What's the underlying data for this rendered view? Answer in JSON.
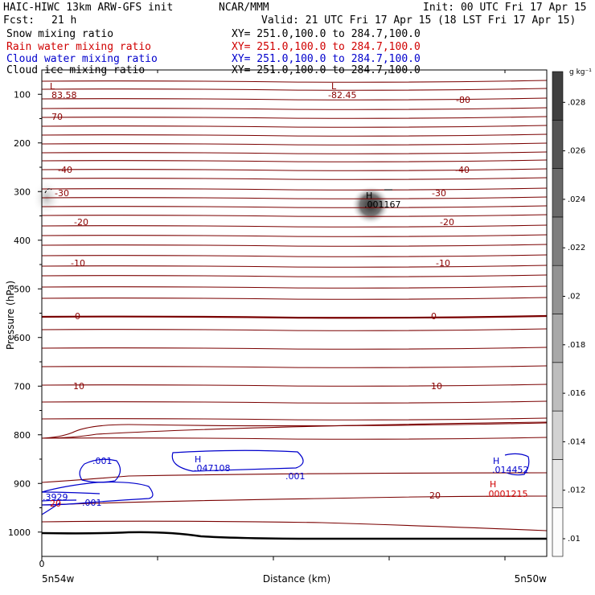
{
  "header": {
    "title": "HAIC-HIWC 13km ARW-GFS init",
    "org": "NCAR/MMM",
    "init": "Init: 00 UTC Fri 17 Apr 15",
    "fcst": "Fcst:",
    "fcst_hours": "21 h",
    "valid": "Valid: 21 UTC Fri 17 Apr 15 (18 LST Fri 17 Apr 15)"
  },
  "fields": [
    {
      "label": "Snow mixing ratio",
      "xy": "XY= 251.0,100.0 to 284.7,100.0",
      "color": "#000000"
    },
    {
      "label": "Rain water mixing ratio",
      "xy": "XY= 251.0,100.0 to 284.7,100.0",
      "color": "#d00000"
    },
    {
      "label": "Cloud water mixing ratio",
      "xy": "XY= 251.0,100.0 to 284.7,100.0",
      "color": "#0000cc"
    },
    {
      "label": "Cloud ice mixing ratio",
      "xy": "XY= 251.0,100.0 to 284.7,100.0",
      "color": "#000000"
    }
  ],
  "chart_data": {
    "type": "contour",
    "xlabel": "Distance (km)",
    "ylabel": "Pressure (hPa)",
    "x_ticks": [
      "0"
    ],
    "x_end_labels": [
      "5n54w",
      "5n50w"
    ],
    "y_ticks": [
      100,
      200,
      300,
      400,
      500,
      600,
      700,
      800,
      900,
      1000
    ],
    "ylim": [
      1050,
      50
    ],
    "colorbar": {
      "unit": "g kg⁻¹",
      "ticks": [
        ".01",
        ".012",
        ".014",
        ".016",
        ".018",
        ".02",
        ".022",
        ".024",
        ".026",
        ".028"
      ]
    },
    "temperature_labels": [
      "-80",
      "-70",
      "-40",
      "-30",
      "-20",
      "-10",
      "0",
      "10",
      "20"
    ],
    "extrema": [
      {
        "type": "L",
        "value": "83.58",
        "color": "#8b0000"
      },
      {
        "type": "L",
        "value": "-82.45",
        "color": "#8b0000"
      },
      {
        "type": "H",
        "value": ".001167",
        "color": "#000000"
      },
      {
        "type": "H",
        "value": ".047108",
        "color": "#0000cc"
      },
      {
        "type": "H",
        "value": ".014452",
        "color": "#0000cc"
      },
      {
        "type": "H",
        "value": ".0001215",
        "color": "#d00000"
      }
    ],
    "cloud_water_labels": [
      ".001",
      ".001",
      ".001",
      ".3929"
    ],
    "rain_labels": [
      "20"
    ]
  }
}
